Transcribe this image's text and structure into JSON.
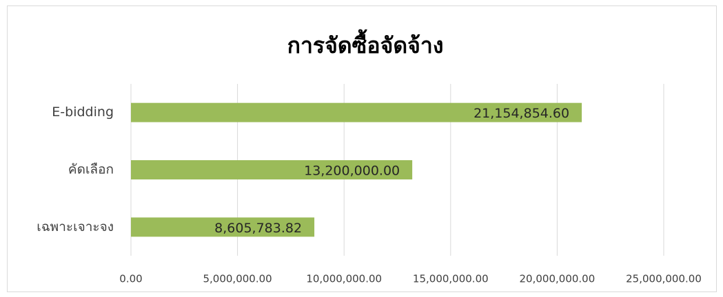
{
  "chart_data": {
    "type": "bar",
    "orientation": "horizontal",
    "title": "การจัดซื้อจัดจ้าง",
    "categories": [
      "E-bidding",
      "คัดเลือก",
      "เฉพาะเจาะจง"
    ],
    "values": [
      21154854.6,
      13200000,
      8605783.82
    ],
    "value_labels": [
      "21,154,854.60",
      "13,200,000.00",
      "8,605,783.82"
    ],
    "color": "#9bbb59",
    "xlim": [
      0,
      25000000
    ],
    "xticks": [
      {
        "value": 0,
        "label": "0.00"
      },
      {
        "value": 5000000,
        "label": "5,000,000.00"
      },
      {
        "value": 10000000,
        "label": "10,000,000.00"
      },
      {
        "value": 15000000,
        "label": "15,000,000.00"
      },
      {
        "value": 20000000,
        "label": "20,000,000.00"
      },
      {
        "value": 25000000,
        "label": "25,000,000.00"
      }
    ],
    "grid": true
  }
}
